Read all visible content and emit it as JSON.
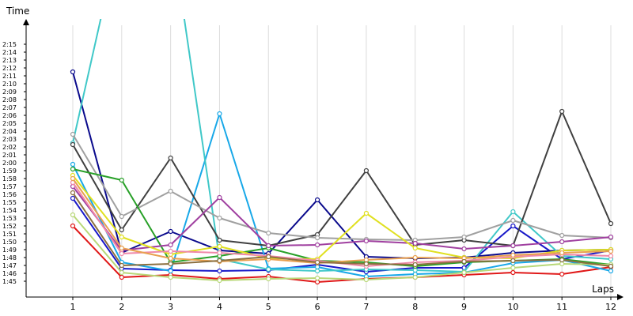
{
  "chart_data": {
    "type": "line",
    "title": "",
    "xlabel": "Laps",
    "ylabel": "Time",
    "x": [
      1,
      2,
      3,
      4,
      5,
      6,
      7,
      8,
      9,
      10,
      11,
      12
    ],
    "y_ticks": [
      "1:45",
      "1:46",
      "1:47",
      "1:48",
      "1:49",
      "1:50",
      "1:51",
      "1:52",
      "1:53",
      "1:54",
      "1:55",
      "1:56",
      "1:57",
      "1:58",
      "1:59",
      "2:00",
      "2:01",
      "2:02",
      "2:03",
      "2:04",
      "2:05",
      "2:06",
      "2:07",
      "2:08",
      "2:09",
      "2:10",
      "2:11",
      "2:12",
      "2:13",
      "2:14",
      "2:15"
    ],
    "ylim_seconds": [
      104,
      138
    ],
    "grid": true,
    "legend": "none",
    "series": [
      {
        "color": "#e01818",
        "values": [
          112,
          105.5,
          105.8,
          105.3,
          105.6,
          104.9,
          105.3,
          105.5,
          105.8,
          106.1,
          105.9,
          106.8
        ]
      },
      {
        "color": "#1818c8",
        "values": [
          115.5,
          106.6,
          106.4,
          106.3,
          106.4,
          107.1,
          106.2,
          106.7,
          106.7,
          112,
          107.8,
          108.9
        ]
      },
      {
        "color": "#0a0a8c",
        "values": [
          131.5,
          108.6,
          111.3,
          108.9,
          108.5,
          115.3,
          108.1,
          107.9,
          108.0,
          108.6,
          108.9,
          109.0
        ]
      },
      {
        "color": "#18a8e8",
        "values": [
          119.8,
          107.4,
          106.3,
          126.2,
          106.6,
          106.8,
          105.6,
          105.9,
          106.1,
          107.3,
          107.7,
          106.3
        ]
      },
      {
        "color": "#40c8c8",
        "values": [
          122.5,
          150,
          150,
          107.8,
          106.5,
          106.3,
          106.5,
          106.4,
          106.2,
          113.8,
          108.2,
          107.8
        ]
      },
      {
        "color": "#404040",
        "values": [
          122.3,
          111.5,
          120.6,
          110.2,
          109.5,
          110.9,
          119.0,
          109.6,
          110.2,
          109.5,
          126.5,
          112.3
        ]
      },
      {
        "color": "#a0a0a0",
        "values": [
          123.6,
          113.2,
          116.4,
          113.0,
          111.1,
          110.5,
          110.3,
          110.2,
          110.6,
          112.7,
          110.8,
          110.5
        ]
      },
      {
        "color": "#28a028",
        "values": [
          119.2,
          117.8,
          107.4,
          108.2,
          109.2,
          107.6,
          107.4,
          106.9,
          107.4,
          107.6,
          107.8,
          107.1
        ]
      },
      {
        "color": "#a040a0",
        "values": [
          117.0,
          108.9,
          109.6,
          115.6,
          109.5,
          109.6,
          110.1,
          109.8,
          109.1,
          109.5,
          110.0,
          110.6
        ]
      },
      {
        "color": "#e0e020",
        "values": [
          118.4,
          110.6,
          108.4,
          109.4,
          107.9,
          107.8,
          113.6,
          109.2,
          108.0,
          107.9,
          108.9,
          109.0
        ]
      },
      {
        "color": "#b8d878",
        "values": [
          113.4,
          106.1,
          105.5,
          105.1,
          105.3,
          105.4,
          105.2,
          105.5,
          106.1,
          106.7,
          107.2,
          107.1
        ]
      },
      {
        "color": "#f088a8",
        "values": [
          117.5,
          108.5,
          108.8,
          108.6,
          108.2,
          107.6,
          106.9,
          107.4,
          107.6,
          108.1,
          108.4,
          108.2
        ]
      },
      {
        "color": "#e8a050",
        "values": [
          118.0,
          109.2,
          107.9,
          107.5,
          107.8,
          107.3,
          107.7,
          108.0,
          107.9,
          108.3,
          108.6,
          108.8
        ]
      },
      {
        "color": "#8c7040",
        "values": [
          116.2,
          107.0,
          107.2,
          107.6,
          108.1,
          107.4,
          107.2,
          107.1,
          107.5,
          107.6,
          107.7,
          106.9
        ]
      }
    ]
  }
}
